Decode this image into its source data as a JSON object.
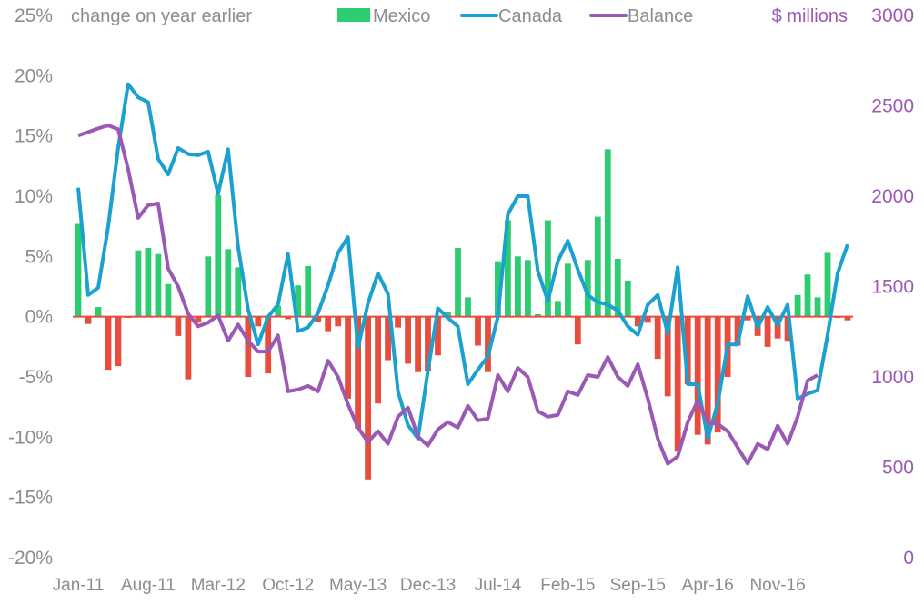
{
  "chart_data": {
    "type": "bar",
    "left_unit_label": "change on year earlier",
    "right_unit_label": "$ millions",
    "left_axis": {
      "min": -20,
      "max": 25,
      "ticks": [
        25,
        20,
        15,
        10,
        5,
        0,
        -5,
        -10,
        -15,
        -20
      ],
      "tick_labels": [
        "25%",
        "20%",
        "15%",
        "10%",
        "5%",
        "0%",
        "-5%",
        "-10%",
        "-15%",
        "-20%"
      ]
    },
    "right_axis": {
      "min": 0,
      "max": 3000,
      "ticks": [
        3000,
        2500,
        2000,
        1500,
        1000,
        500,
        0
      ],
      "tick_labels": [
        "3000",
        "2500",
        "2000",
        "1500",
        "1000",
        "500",
        "0"
      ]
    },
    "x_tick_labels": [
      "Jan-11",
      "Aug-11",
      "Mar-12",
      "Oct-12",
      "May-13",
      "Dec-13",
      "Jul-14",
      "Feb-15",
      "Sep-15",
      "Apr-16",
      "Nov-16"
    ],
    "x_tick_index": [
      0,
      7,
      14,
      21,
      28,
      35,
      42,
      49,
      56,
      63,
      70
    ],
    "colors": {
      "positive_bar": "#2ecc71",
      "negative_bar": "#e74c3c",
      "canada": "#1ba1cf",
      "balance": "#9b59b6",
      "zero_line": "#e74c3c"
    },
    "legend": [
      {
        "name": "Mexico",
        "swatch": "bar",
        "color": "#2ecc71"
      },
      {
        "name": "Canada",
        "swatch": "line",
        "color": "#1ba1cf"
      },
      {
        "name": "Balance",
        "swatch": "line",
        "color": "#9b59b6"
      }
    ],
    "series": [
      {
        "name": "Mexico",
        "kind": "bar",
        "axis": "left",
        "values": [
          7.7,
          -0.6,
          0.8,
          -4.4,
          -4.1,
          -0.1,
          5.5,
          5.7,
          5.2,
          2.7,
          -1.6,
          -5.2,
          -0.5,
          5.0,
          10.1,
          5.6,
          4.1,
          -5.0,
          -0.8,
          -4.7,
          0.9,
          -0.2,
          2.6,
          4.2,
          -0.4,
          -1.2,
          -0.8,
          -6.8,
          -9.3,
          -13.5,
          -7.2,
          -3.6,
          -0.9,
          -3.9,
          -4.6,
          -4.5,
          -3.2,
          0.4,
          5.7,
          1.6,
          -2.4,
          -4.6,
          4.6,
          8.0,
          5.0,
          4.7,
          0.2,
          8.0,
          1.3,
          4.4,
          -2.3,
          4.7,
          8.3,
          13.9,
          4.8,
          3.0,
          -0.8,
          -0.5,
          -3.5,
          -6.6,
          -11.2,
          -5.6,
          -9.8,
          -10.6,
          -9.6,
          -5.0,
          -2.4,
          -0.3,
          -1.6,
          -2.5,
          -1.8,
          -2.0,
          1.8,
          3.5,
          1.6,
          5.3,
          -0.1,
          -0.3
        ]
      },
      {
        "name": "Canada",
        "kind": "line",
        "axis": "left",
        "values": [
          10.7,
          1.8,
          2.4,
          7.5,
          14.0,
          19.3,
          18.2,
          17.8,
          13.1,
          11.8,
          14.0,
          13.5,
          13.4,
          13.7,
          10.2,
          13.9,
          5.8,
          0.6,
          -2.3,
          0.0,
          1.0,
          5.2,
          -1.2,
          -0.9,
          0.3,
          2.6,
          5.3,
          6.6,
          -2.6,
          1.1,
          3.6,
          1.9,
          -6.2,
          -9.0,
          -10.1,
          -4.5,
          0.7,
          -0.1,
          -0.8,
          -5.6,
          -4.4,
          -3.3,
          0.0,
          8.5,
          10.0,
          10.0,
          3.8,
          1.3,
          4.6,
          6.3,
          3.9,
          1.8,
          1.2,
          1.0,
          0.5,
          -0.8,
          -1.5,
          1.0,
          1.8,
          -1.4,
          4.1,
          -5.6,
          -5.6,
          -10.1,
          -7.2,
          -2.3,
          -2.3,
          1.7,
          -0.9,
          0.8,
          -0.7,
          1.0,
          -6.8,
          -6.4,
          -6.1,
          -1.5,
          3.6,
          6.0
        ]
      },
      {
        "name": "Balance",
        "kind": "line",
        "axis": "right",
        "values": [
          2335,
          2355,
          2375,
          2392,
          2370,
          2150,
          1880,
          1950,
          1960,
          1600,
          1500,
          1350,
          1280,
          1300,
          1340,
          1200,
          1290,
          1200,
          1140,
          1140,
          1230,
          920,
          930,
          950,
          920,
          1090,
          1000,
          850,
          720,
          640,
          700,
          630,
          780,
          830,
          670,
          620,
          710,
          750,
          720,
          840,
          760,
          770,
          1010,
          920,
          1050,
          1000,
          810,
          780,
          790,
          920,
          900,
          1010,
          1000,
          1110,
          1000,
          950,
          1070,
          880,
          660,
          520,
          560,
          750,
          870,
          750,
          740,
          700,
          610,
          520,
          630,
          600,
          730,
          630,
          780,
          980,
          1010
        ]
      }
    ]
  }
}
